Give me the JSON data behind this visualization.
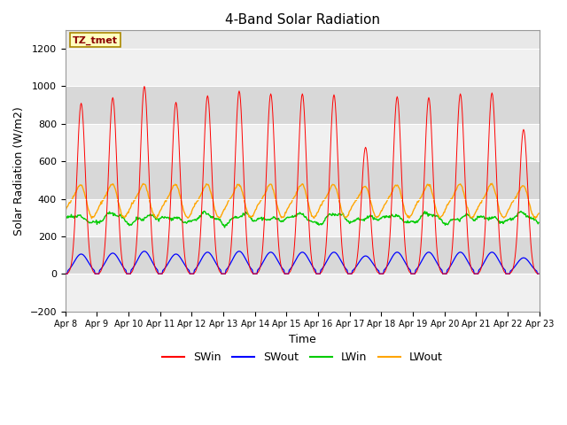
{
  "title": "4-Band Solar Radiation",
  "xlabel": "Time",
  "ylabel": "Solar Radiation (W/m2)",
  "ylim": [
    -200,
    1300
  ],
  "yticks": [
    -200,
    0,
    200,
    400,
    600,
    800,
    1000,
    1200
  ],
  "legend_label": "TZ_tmet",
  "series_labels": [
    "SWin",
    "SWout",
    "LWin",
    "LWout"
  ],
  "series_colors": [
    "#ff0000",
    "#0000ff",
    "#00cc00",
    "#ffa500"
  ],
  "background_color": "#ffffff",
  "plot_bg_color": "#e8e8e8",
  "stripe_color_light": "#f0f0f0",
  "stripe_color_dark": "#d8d8d8",
  "n_days": 15,
  "day_labels": [
    "Apr 8",
    "Apr 9",
    "Apr 10",
    "Apr 11",
    "Apr 12",
    "Apr 13",
    "Apr 14",
    "Apr 15",
    "Apr 16",
    "Apr 17",
    "Apr 18",
    "Apr 19",
    "Apr 20",
    "Apr 21",
    "Apr 22",
    "Apr 23"
  ],
  "SWin_peaks": [
    910,
    940,
    1000,
    915,
    950,
    975,
    960,
    960,
    955,
    675,
    945,
    940,
    960,
    965,
    770,
    0
  ],
  "SWout_peaks": [
    105,
    110,
    120,
    105,
    115,
    120,
    115,
    115,
    115,
    95,
    115,
    115,
    115,
    115,
    85,
    0
  ],
  "LWin_base": 300,
  "LWin_amp": 20,
  "LWout_base": 375,
  "LWout_amp": 65,
  "annotation_color": "#8b0000",
  "annotation_bg": "#ffffc0",
  "annotation_edge": "#aa8800"
}
